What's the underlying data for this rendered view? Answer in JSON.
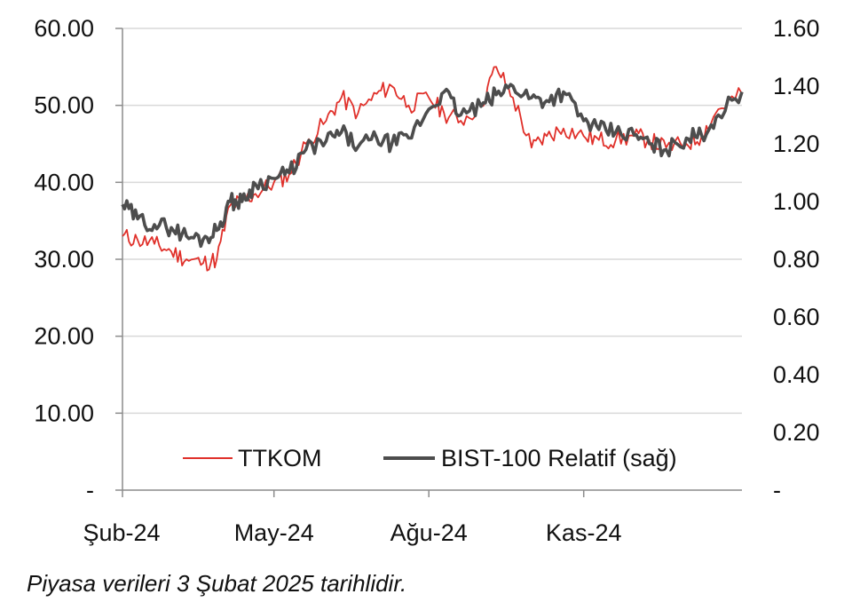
{
  "chart_data": {
    "type": "line",
    "colors": {
      "ttkom": "#e0302a",
      "bist": "#4d4d4d",
      "grid": "#d9d9d9",
      "axis": "#8c8c8c"
    },
    "x_tick_labels": [
      "Şub-24",
      "May-24",
      "Ağu-24",
      "Kas-24"
    ],
    "y_left_tick_labels": [
      "-",
      "10.00",
      "20.00",
      "30.00",
      "40.00",
      "50.00",
      "60.00"
    ],
    "y_right_tick_labels": [
      "-",
      "0.20",
      "0.40",
      "0.60",
      "0.80",
      "1.00",
      "1.20",
      "1.40",
      "1.60"
    ],
    "ylim_left": [
      0,
      60
    ],
    "ylim_right": [
      0,
      1.6
    ],
    "grid": true,
    "legend": {
      "position": "bottom-center",
      "entries": [
        "TTKOM",
        "BIST-100 Relatif (sağ)"
      ]
    },
    "series": [
      {
        "name": "TTKOM",
        "axis": "left",
        "x": [
          "2024-02-01",
          "2024-02-10",
          "2024-02-20",
          "2024-03-01",
          "2024-03-10",
          "2024-03-20",
          "2024-03-28",
          "2024-04-05",
          "2024-04-12",
          "2024-04-20",
          "2024-05-01",
          "2024-05-10",
          "2024-05-20",
          "2024-06-01",
          "2024-06-10",
          "2024-06-20",
          "2024-07-01",
          "2024-07-10",
          "2024-07-20",
          "2024-08-01",
          "2024-08-10",
          "2024-08-20",
          "2024-09-01",
          "2024-09-10",
          "2024-09-20",
          "2024-10-01",
          "2024-10-10",
          "2024-10-20",
          "2024-11-01",
          "2024-11-10",
          "2024-11-20",
          "2024-12-01",
          "2024-12-10",
          "2024-12-20",
          "2025-01-01",
          "2025-01-10",
          "2025-01-20",
          "2025-02-03"
        ],
        "values": [
          33.0,
          32.5,
          32.0,
          31.0,
          30.0,
          29.5,
          30.0,
          37.0,
          37.5,
          38.5,
          40.0,
          41.0,
          45.0,
          48.0,
          51.0,
          49.0,
          51.5,
          52.5,
          50.0,
          51.0,
          49.0,
          48.0,
          50.0,
          55.0,
          51.0,
          44.5,
          46.0,
          47.0,
          46.0,
          45.5,
          45.5,
          46.0,
          45.5,
          44.5,
          45.0,
          46.0,
          49.5,
          51.5
        ]
      },
      {
        "name": "BIST-100 Relatif (sağ)",
        "axis": "right",
        "x": [
          "2024-02-01",
          "2024-02-10",
          "2024-02-20",
          "2024-03-01",
          "2024-03-10",
          "2024-03-20",
          "2024-03-28",
          "2024-04-05",
          "2024-04-12",
          "2024-04-20",
          "2024-05-01",
          "2024-05-10",
          "2024-05-20",
          "2024-06-01",
          "2024-06-10",
          "2024-06-20",
          "2024-07-01",
          "2024-07-10",
          "2024-07-20",
          "2024-08-01",
          "2024-08-10",
          "2024-08-20",
          "2024-09-01",
          "2024-09-10",
          "2024-09-20",
          "2024-10-01",
          "2024-10-10",
          "2024-10-20",
          "2024-11-01",
          "2024-11-10",
          "2024-11-20",
          "2024-12-01",
          "2024-12-10",
          "2024-12-20",
          "2025-01-01",
          "2025-01-10",
          "2025-01-20",
          "2025-02-03"
        ],
        "values": [
          0.99,
          0.94,
          0.92,
          0.91,
          0.88,
          0.87,
          0.9,
          1.0,
          1.0,
          1.06,
          1.08,
          1.1,
          1.18,
          1.21,
          1.24,
          1.19,
          1.22,
          1.2,
          1.22,
          1.32,
          1.38,
          1.3,
          1.33,
          1.37,
          1.4,
          1.36,
          1.35,
          1.38,
          1.28,
          1.25,
          1.24,
          1.23,
          1.2,
          1.18,
          1.22,
          1.23,
          1.3,
          1.38
        ]
      }
    ]
  },
  "footnote": "Piyasa verileri 3 Şubat 2025 tarihlidir."
}
